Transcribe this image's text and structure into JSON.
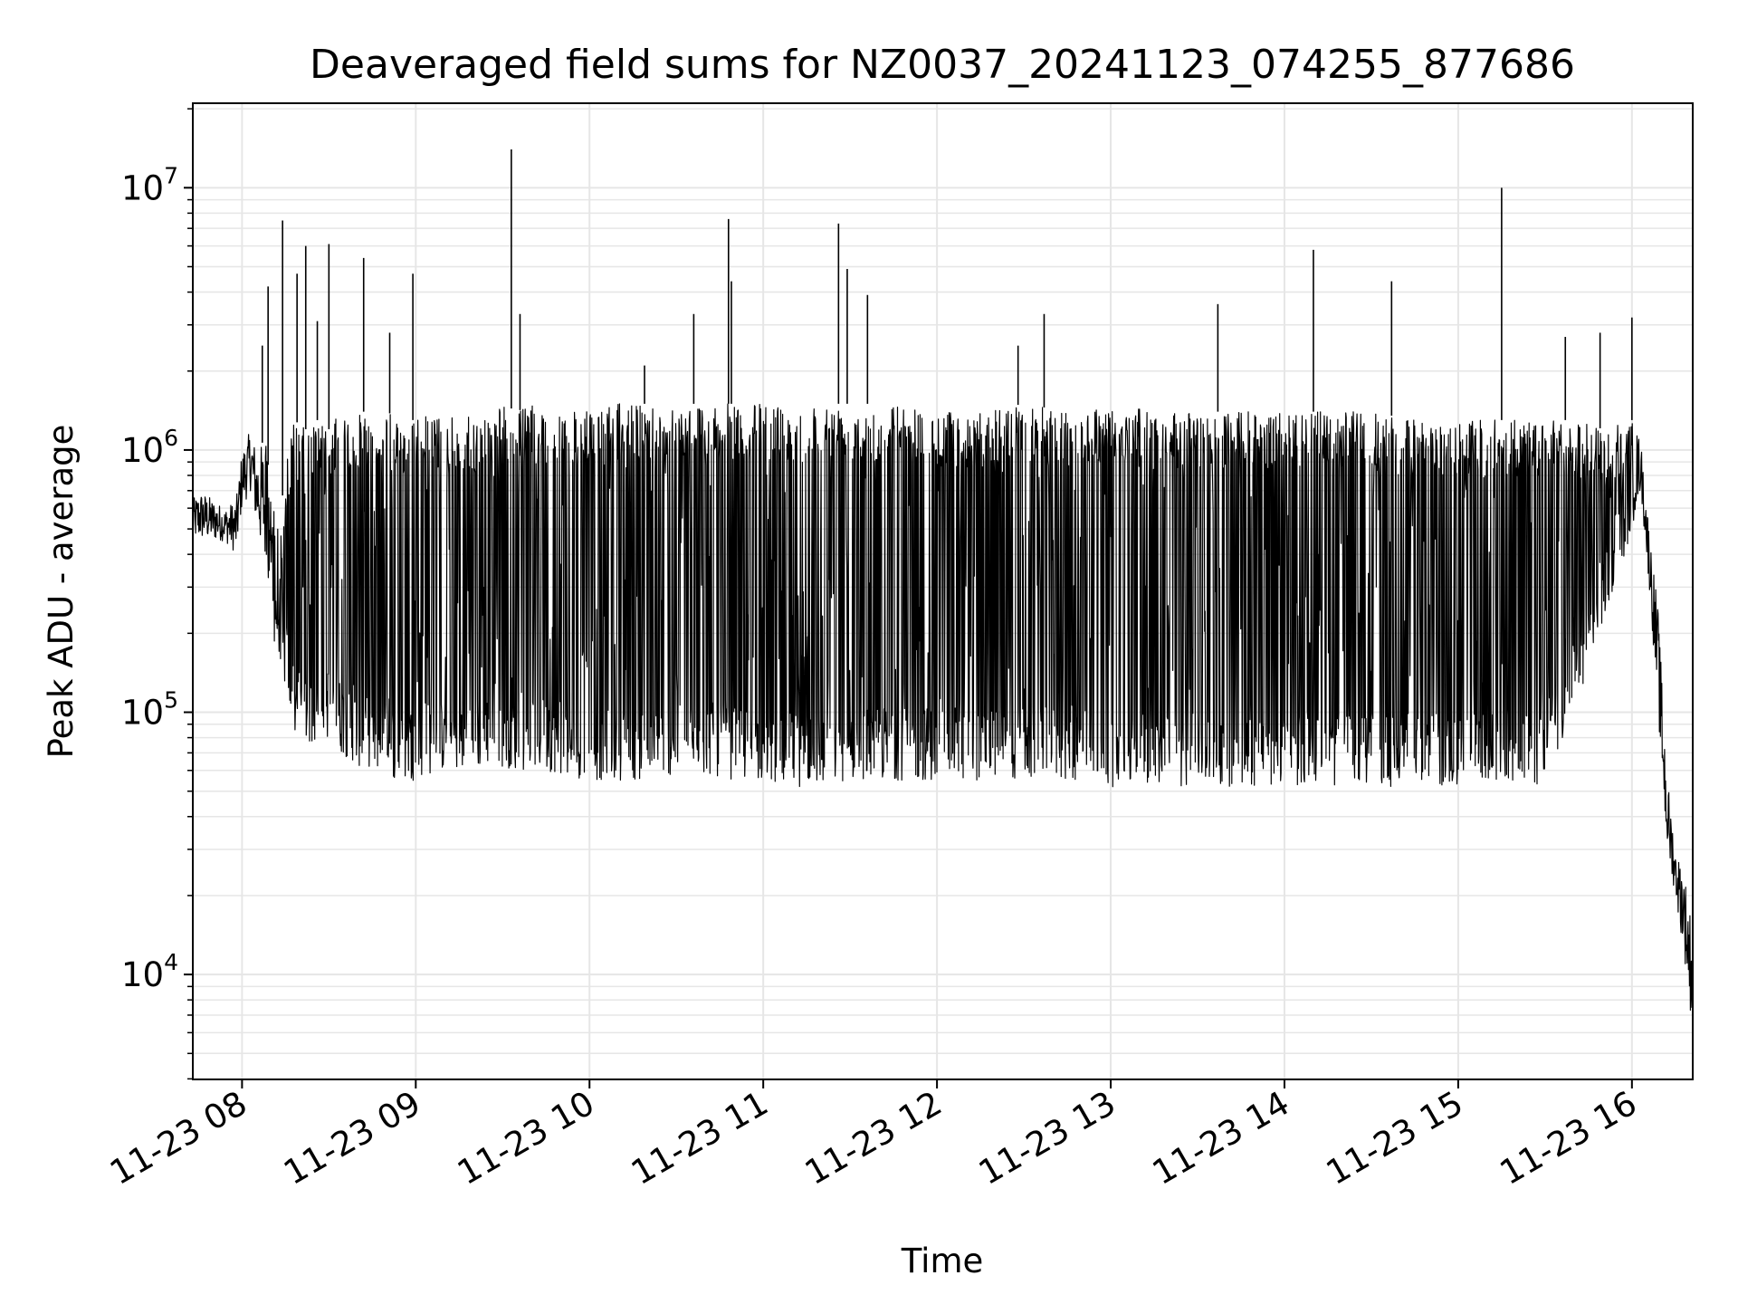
{
  "chart_data": {
    "type": "line",
    "title": "Deaveraged field sums for NZ0037_20241123_074255_877686",
    "xlabel": "Time",
    "ylabel": "Peak ADU - average",
    "y_scale": "log",
    "ylim": [
      3980,
      21000000
    ],
    "xlim": [
      "2024-11-23 07:43",
      "2024-11-23 16:21"
    ],
    "x_tick_labels": [
      "11-23 08",
      "11-23 09",
      "11-23 10",
      "11-23 11",
      "11-23 12",
      "11-23 13",
      "11-23 14",
      "11-23 15",
      "11-23 16"
    ],
    "y_tick_labels": [
      {
        "base": "10",
        "exp": "4",
        "value": 10000
      },
      {
        "base": "10",
        "exp": "5",
        "value": 100000
      },
      {
        "base": "10",
        "exp": "6",
        "value": 1000000
      },
      {
        "base": "10",
        "exp": "7",
        "value": 10000000
      }
    ],
    "grid": true,
    "line_color": "#000000",
    "grid_color": "#e6e6e6",
    "series": [
      {
        "x": [
          "2024-11-23 07:43",
          "2024-11-23 07:46",
          "2024-11-23 07:50",
          "2024-11-23 07:54",
          "2024-11-23 07:58",
          "2024-11-23 08:00",
          "2024-11-23 08:03",
          "2024-11-23 08:05",
          "2024-11-23 08:08",
          "2024-11-23 08:10",
          "2024-11-23 08:13",
          "2024-11-23 08:15",
          "2024-11-23 08:18",
          "2024-11-23 08:22",
          "2024-11-23 08:26",
          "2024-11-23 08:30",
          "2024-11-23 08:34",
          "2024-11-23 08:38",
          "2024-11-23 08:42",
          "2024-11-23 08:47",
          "2024-11-23 08:52",
          "2024-11-23 08:56",
          "2024-11-23 09:00",
          "2024-11-23 09:05",
          "2024-11-23 09:10",
          "2024-11-23 09:15",
          "2024-11-23 09:20",
          "2024-11-23 09:25",
          "2024-11-23 09:30",
          "2024-11-23 09:35",
          "2024-11-23 09:40",
          "2024-11-23 09:45",
          "2024-11-23 09:50",
          "2024-11-23 09:55",
          "2024-11-23 10:00",
          "2024-11-23 10:10",
          "2024-11-23 10:20",
          "2024-11-23 10:30",
          "2024-11-23 10:40",
          "2024-11-23 10:50",
          "2024-11-23 11:00",
          "2024-11-23 11:10",
          "2024-11-23 11:20",
          "2024-11-23 11:30",
          "2024-11-23 11:40",
          "2024-11-23 11:50",
          "2024-11-23 12:00",
          "2024-11-23 12:15",
          "2024-11-23 12:30",
          "2024-11-23 12:45",
          "2024-11-23 13:00",
          "2024-11-23 13:15",
          "2024-11-23 13:30",
          "2024-11-23 13:45",
          "2024-11-23 14:00",
          "2024-11-23 14:15",
          "2024-11-23 14:30",
          "2024-11-23 14:45",
          "2024-11-23 15:00",
          "2024-11-23 15:15",
          "2024-11-23 15:30",
          "2024-11-23 15:40",
          "2024-11-23 15:50",
          "2024-11-23 16:00",
          "2024-11-23 16:03",
          "2024-11-23 16:06",
          "2024-11-23 16:09",
          "2024-11-23 16:12",
          "2024-11-23 16:15",
          "2024-11-23 16:18",
          "2024-11-23 16:21"
        ],
        "upper": [
          650000,
          700000,
          650000,
          600000,
          650000,
          1000000,
          1200000,
          1000000,
          1100000,
          700000,
          500000,
          900000,
          1300000,
          1200000,
          1300000,
          1200000,
          1400000,
          1300000,
          1400000,
          1300000,
          1400000,
          1300000,
          1300000,
          1400000,
          1300000,
          1400000,
          1300000,
          1400000,
          1500000,
          1400000,
          1500000,
          1400000,
          1500000,
          1400000,
          1400000,
          1500000,
          1500000,
          1500000,
          1500000,
          1500000,
          1500000,
          1500000,
          1500000,
          1500000,
          1500000,
          1500000,
          1400000,
          1400000,
          1500000,
          1400000,
          1500000,
          1400000,
          1400000,
          1400000,
          1400000,
          1400000,
          1400000,
          1300000,
          1300000,
          1300000,
          1300000,
          1300000,
          1200000,
          1300000,
          1100000,
          500000,
          250000,
          60000,
          30000,
          25000,
          15000
        ],
        "lower": [
          450000,
          450000,
          450000,
          450000,
          400000,
          600000,
          700000,
          500000,
          350000,
          200000,
          160000,
          120000,
          80000,
          75000,
          75000,
          80000,
          70000,
          65000,
          60000,
          60000,
          55000,
          55000,
          55000,
          58000,
          60000,
          60000,
          60000,
          62000,
          62000,
          60000,
          60000,
          60000,
          58000,
          55000,
          55000,
          55000,
          55000,
          58000,
          58000,
          55000,
          55000,
          52000,
          52000,
          55000,
          55000,
          55000,
          55000,
          55000,
          55000,
          55000,
          52000,
          52000,
          52000,
          52000,
          52000,
          52000,
          52000,
          52000,
          52000,
          52000,
          52000,
          100000,
          200000,
          500000,
          700000,
          300000,
          100000,
          30000,
          20000,
          12000,
          6000
        ],
        "spikes": [
          {
            "x": "2024-11-23 08:07",
            "y": 2500000
          },
          {
            "x": "2024-11-23 08:09",
            "y": 4200000
          },
          {
            "x": "2024-11-23 08:14",
            "y": 7500000
          },
          {
            "x": "2024-11-23 08:19",
            "y": 4700000
          },
          {
            "x": "2024-11-23 08:22",
            "y": 6000000
          },
          {
            "x": "2024-11-23 08:26",
            "y": 3100000
          },
          {
            "x": "2024-11-23 08:30",
            "y": 6100000
          },
          {
            "x": "2024-11-23 08:42",
            "y": 5400000
          },
          {
            "x": "2024-11-23 08:51",
            "y": 2800000
          },
          {
            "x": "2024-11-23 08:59",
            "y": 4700000
          },
          {
            "x": "2024-11-23 09:33",
            "y": 14000000
          },
          {
            "x": "2024-11-23 09:36",
            "y": 3300000
          },
          {
            "x": "2024-11-23 10:19",
            "y": 2100000
          },
          {
            "x": "2024-11-23 10:36",
            "y": 3300000
          },
          {
            "x": "2024-11-23 10:48",
            "y": 7600000
          },
          {
            "x": "2024-11-23 10:49",
            "y": 4400000
          },
          {
            "x": "2024-11-23 11:26",
            "y": 7300000
          },
          {
            "x": "2024-11-23 11:29",
            "y": 4900000
          },
          {
            "x": "2024-11-23 11:36",
            "y": 3900000
          },
          {
            "x": "2024-11-23 12:28",
            "y": 2500000
          },
          {
            "x": "2024-11-23 12:37",
            "y": 3300000
          },
          {
            "x": "2024-11-23 13:37",
            "y": 3600000
          },
          {
            "x": "2024-11-23 14:10",
            "y": 5800000
          },
          {
            "x": "2024-11-23 14:37",
            "y": 4400000
          },
          {
            "x": "2024-11-23 15:15",
            "y": 10000000
          },
          {
            "x": "2024-11-23 15:37",
            "y": 2700000
          },
          {
            "x": "2024-11-23 15:49",
            "y": 2800000
          },
          {
            "x": "2024-11-23 16:00",
            "y": 3200000
          }
        ]
      }
    ]
  }
}
